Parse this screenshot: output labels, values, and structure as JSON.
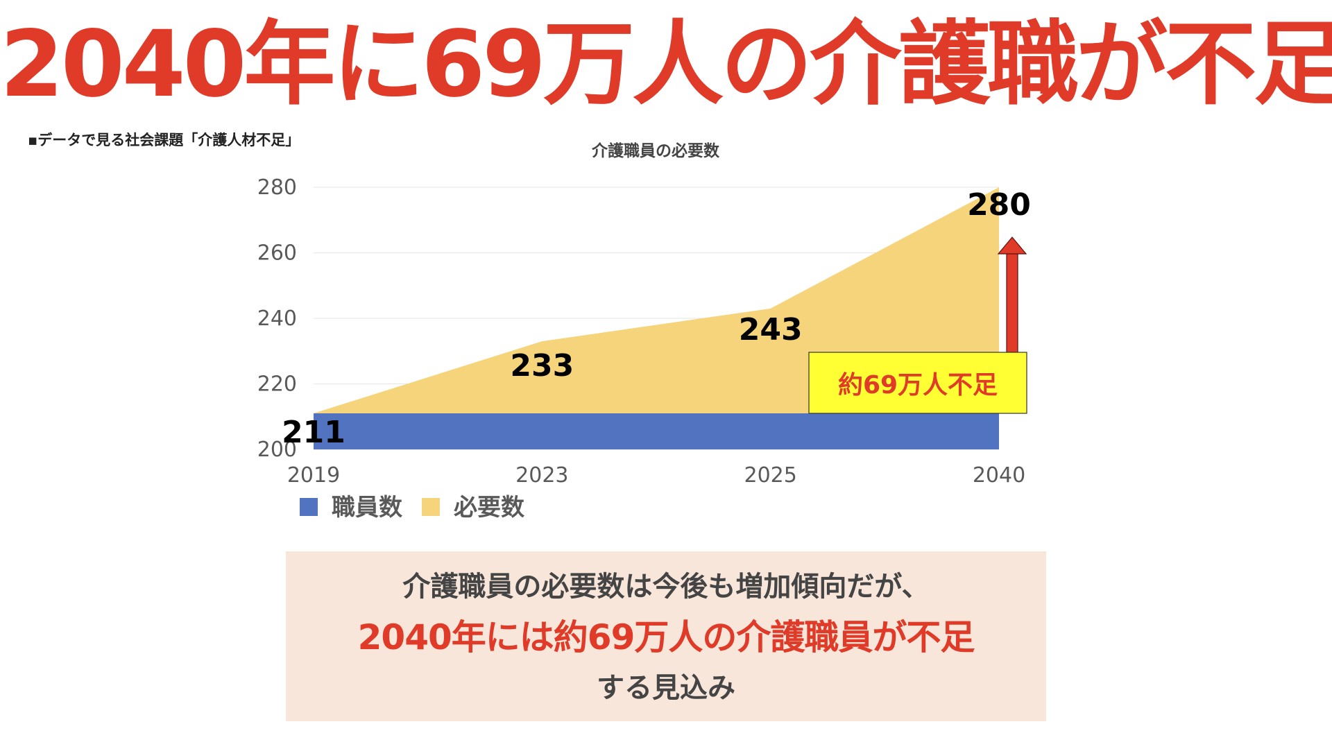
{
  "headline": "2040年に69万人の介護職が不足",
  "source_note": "▪データで見る社会課題「介護人材不足」",
  "summary": {
    "line1": "介護職員の必要数は今後も増加傾向だが、",
    "line2": "2040年には約69万人の介護職員が不足",
    "line3": "する見込み"
  },
  "colors": {
    "headline": "#e03a28",
    "staff_series": "#5274c0",
    "required_series": "#f6d47c",
    "arrow": "#e03a28",
    "callout_bg": "#ffff33",
    "callout_text": "#e03a28",
    "summary_bg": "#f8e6da"
  },
  "chart_data": {
    "type": "area",
    "title": "介護職員の必要数",
    "categories": [
      "2019",
      "2023",
      "2025",
      "2040"
    ],
    "series": [
      {
        "name": "職員数",
        "values": [
          211,
          211,
          211,
          211
        ]
      },
      {
        "name": "必要数",
        "values": [
          211,
          233,
          243,
          280
        ]
      }
    ],
    "data_labels": [
      "211",
      "233",
      "243",
      "280"
    ],
    "y_ticks": [
      "200",
      "220",
      "240",
      "260",
      "280"
    ],
    "ylim": [
      200,
      280
    ],
    "grid": true,
    "legend_position": "bottom-left",
    "callout": "約69万人不足"
  }
}
